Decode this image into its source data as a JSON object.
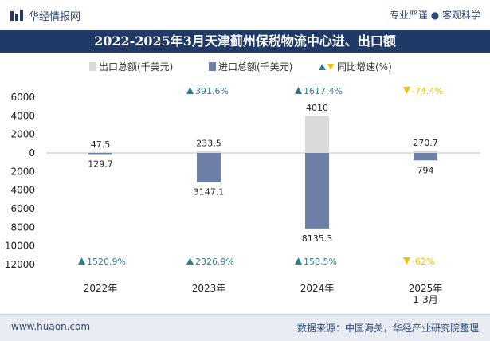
{
  "header": {
    "brand": "华经情报网",
    "tagline": "专业严谨 ● 客观科学"
  },
  "footer": {
    "website": "www.huaon.com",
    "source": "数据来源：中国海关，华经产业研究院整理"
  },
  "colors": {
    "export": "#d9d9d9",
    "import": "#6e7fa8",
    "growth_up": "#2e7d8f",
    "growth_down": "#f0c000",
    "title_bg": "#203a68"
  },
  "chart_data": {
    "type": "bar",
    "title": "2022-2025年3月天津蓟州保税物流中心进、出口额",
    "categories": [
      "2022年",
      "2023年",
      "2024年",
      "2025年\n1-3月"
    ],
    "y_axis": {
      "upper_ticks": [
        "6000",
        "4000",
        "2000",
        "0"
      ],
      "lower_ticks": [
        "2000",
        "4000",
        "6000",
        "8000",
        "10000",
        "12000"
      ],
      "upper_range": [
        0,
        6000
      ],
      "lower_range": [
        0,
        12000
      ]
    },
    "legend": {
      "export": "出口总额(千美元)",
      "import": "进口总额(千美元)",
      "growth": "同比增速(%)"
    },
    "series": [
      {
        "name": "出口总额(千美元)",
        "key": "export",
        "values": [
          47.5,
          233.5,
          4010,
          270.7
        ],
        "labels": [
          "47.5",
          "233.5",
          "4010",
          "270.7"
        ]
      },
      {
        "name": "进口总额(千美元)",
        "key": "import",
        "values": [
          129.7,
          3147.1,
          8135.3,
          794
        ],
        "labels": [
          "129.7",
          "3147.1",
          "8135.3",
          "794"
        ]
      }
    ],
    "export_growth": [
      {
        "label": "",
        "direction": "none"
      },
      {
        "label": "391.6%",
        "direction": "up"
      },
      {
        "label": "1617.4%",
        "direction": "up"
      },
      {
        "label": "-74.4%",
        "direction": "down"
      }
    ],
    "import_growth": [
      {
        "label": "1520.9%",
        "direction": "up"
      },
      {
        "label": "2326.9%",
        "direction": "up"
      },
      {
        "label": "158.5%",
        "direction": "up"
      },
      {
        "label": "-62%",
        "direction": "down"
      }
    ]
  }
}
